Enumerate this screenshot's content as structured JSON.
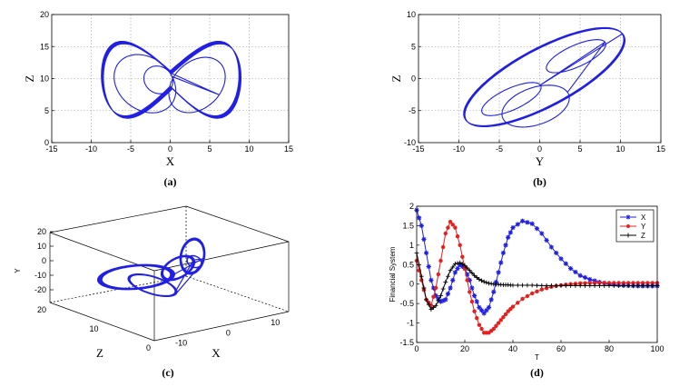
{
  "colors": {
    "blue": "#1f1fe6",
    "red": "#e61f1f",
    "black": "#000000",
    "grid": "#9a9a9a"
  },
  "chart_data": [
    {
      "id": "a",
      "type": "line",
      "caption": "(a)",
      "xlabel": "X",
      "ylabel": "Z",
      "xlim": [
        -15,
        15
      ],
      "ylim": [
        0,
        20
      ],
      "xticks": [
        -15,
        -10,
        -5,
        0,
        5,
        10,
        15
      ],
      "yticks": [
        0,
        5,
        10,
        15,
        20
      ],
      "grid": true,
      "series": [
        {
          "color": "blue",
          "description": "projection of attractor on X-Z plane"
        }
      ]
    },
    {
      "id": "b",
      "type": "line",
      "caption": "(b)",
      "xlabel": "Y",
      "ylabel": "Z",
      "xlim": [
        -15,
        15
      ],
      "ylim": [
        -10,
        10
      ],
      "xticks": [
        -15,
        -10,
        -5,
        0,
        5,
        10,
        15
      ],
      "yticks": [
        -10,
        -5,
        0,
        5,
        10
      ],
      "grid": true,
      "series": [
        {
          "color": "blue",
          "description": "projection of attractor on Y-Z plane"
        }
      ]
    },
    {
      "id": "c",
      "type": "line",
      "caption": "(c)",
      "xlabel": "X",
      "ylabel": "Y",
      "zlabel": "Z",
      "xticks": [
        -10,
        0,
        10
      ],
      "yticks": [
        -20,
        -10,
        0,
        10,
        20
      ],
      "zticks": [
        0,
        10,
        20
      ],
      "grid": false,
      "series": [
        {
          "color": "blue",
          "description": "3D attractor"
        }
      ]
    },
    {
      "id": "d",
      "type": "line",
      "caption": "(d)",
      "xlabel": "T",
      "ylabel": "Financial System",
      "xlim": [
        0,
        100
      ],
      "ylim": [
        -1.5,
        2
      ],
      "xticks": [
        0,
        20,
        40,
        60,
        80,
        100
      ],
      "yticks": [
        -1.5,
        -1,
        -0.5,
        0,
        0.5,
        1,
        1.5,
        2
      ],
      "legend": "top-right",
      "series": [
        {
          "name": "X",
          "color": "blue",
          "marker": "star",
          "t": [
            0,
            2,
            4,
            6,
            8,
            10,
            12,
            14,
            16,
            18,
            20,
            22,
            24,
            26,
            28,
            30,
            32,
            34,
            36,
            38,
            40,
            44,
            48,
            52,
            56,
            60,
            64,
            68,
            72,
            76,
            80,
            84,
            88,
            92,
            96,
            100
          ],
          "values": [
            1.9,
            1.5,
            0.8,
            0.1,
            -0.3,
            -0.45,
            -0.4,
            -0.1,
            0.3,
            0.5,
            0.4,
            0.1,
            -0.3,
            -0.6,
            -0.75,
            -0.6,
            -0.2,
            0.3,
            0.8,
            1.2,
            1.45,
            1.62,
            1.55,
            1.3,
            0.95,
            0.65,
            0.4,
            0.22,
            0.12,
            0.05,
            0.0,
            -0.03,
            -0.04,
            -0.05,
            -0.05,
            -0.05
          ]
        },
        {
          "name": "Y",
          "color": "red",
          "marker": "dot",
          "t": [
            0,
            2,
            4,
            6,
            8,
            10,
            12,
            14,
            16,
            18,
            20,
            22,
            24,
            26,
            28,
            30,
            32,
            34,
            36,
            38,
            40,
            44,
            48,
            52,
            56,
            60,
            64,
            68,
            72,
            76,
            80,
            84,
            88,
            92,
            96,
            100
          ],
          "values": [
            0.6,
            0.1,
            -0.4,
            -0.55,
            -0.1,
            0.6,
            1.3,
            1.6,
            1.45,
            1.0,
            0.4,
            -0.2,
            -0.7,
            -1.05,
            -1.25,
            -1.25,
            -1.15,
            -1.0,
            -0.85,
            -0.7,
            -0.58,
            -0.38,
            -0.24,
            -0.14,
            -0.07,
            -0.03,
            0.0,
            0.02,
            0.03,
            0.03,
            0.03,
            0.03,
            0.03,
            0.03,
            0.03,
            0.03
          ]
        },
        {
          "name": "Z",
          "color": "black",
          "marker": "plus",
          "t": [
            0,
            2,
            4,
            6,
            8,
            10,
            12,
            14,
            16,
            18,
            20,
            22,
            24,
            26,
            28,
            30,
            32,
            34,
            36,
            38,
            40,
            44,
            48,
            52,
            56,
            60,
            64,
            68,
            72,
            76,
            80,
            84,
            88,
            92,
            96,
            100
          ],
          "values": [
            0.8,
            0.2,
            -0.4,
            -0.65,
            -0.55,
            -0.3,
            0.05,
            0.35,
            0.52,
            0.55,
            0.48,
            0.35,
            0.22,
            0.12,
            0.06,
            0.02,
            0.0,
            -0.01,
            -0.02,
            -0.02,
            -0.03,
            -0.03,
            -0.03,
            -0.04,
            -0.04,
            -0.04,
            -0.04,
            -0.04,
            -0.04,
            -0.04,
            -0.04,
            -0.04,
            -0.04,
            -0.04,
            -0.04,
            -0.04
          ]
        }
      ]
    }
  ]
}
